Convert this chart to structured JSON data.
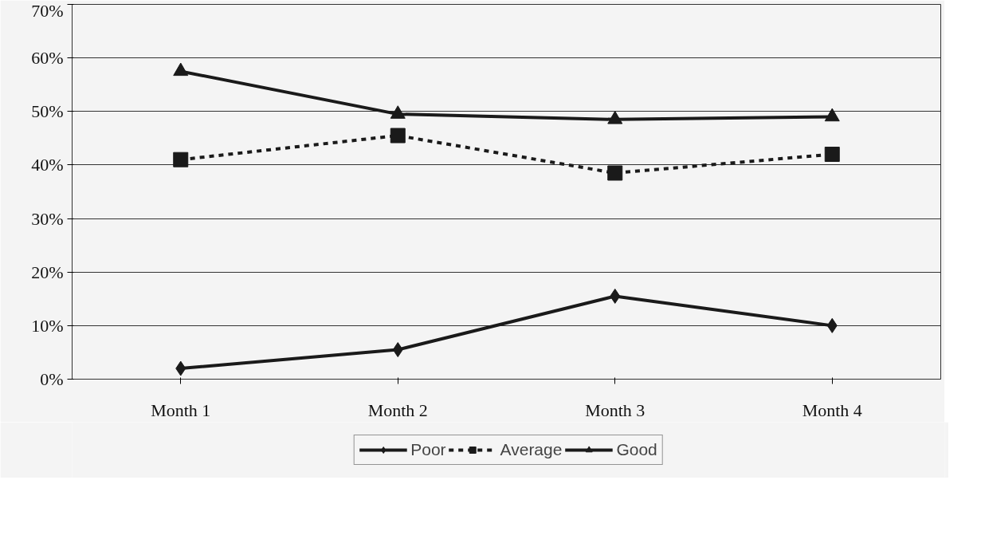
{
  "chart_data": {
    "type": "line",
    "categories": [
      "Month 1",
      "Month 2",
      "Month 3",
      "Month 4"
    ],
    "series": [
      {
        "name": "Poor",
        "color": "#1a1a1a",
        "values": [
          0.02,
          0.055,
          0.155,
          0.1
        ],
        "marker": "diamond",
        "line_style": "solid"
      },
      {
        "name": "Average",
        "color": "#1a1a1a",
        "values": [
          0.41,
          0.455,
          0.385,
          0.42
        ],
        "marker": "square",
        "line_style": "dashed"
      },
      {
        "name": "Good",
        "color": "#1a1a1a",
        "values": [
          0.575,
          0.495,
          0.485,
          0.49
        ],
        "marker": "triangle",
        "line_style": "solid"
      }
    ],
    "ylim": [
      0,
      0.7
    ],
    "yticks": [
      {
        "value": 0,
        "label": "0%"
      },
      {
        "value": 0.1,
        "label": "10%"
      },
      {
        "value": 0.2,
        "label": "20%"
      },
      {
        "value": 0.3,
        "label": "30%"
      },
      {
        "value": 0.4,
        "label": "40%"
      },
      {
        "value": 0.5,
        "label": "50%"
      },
      {
        "value": 0.6,
        "label": "60%"
      },
      {
        "value": 0.7,
        "label": "70%"
      }
    ],
    "grid": "y",
    "legend": "bottom"
  }
}
